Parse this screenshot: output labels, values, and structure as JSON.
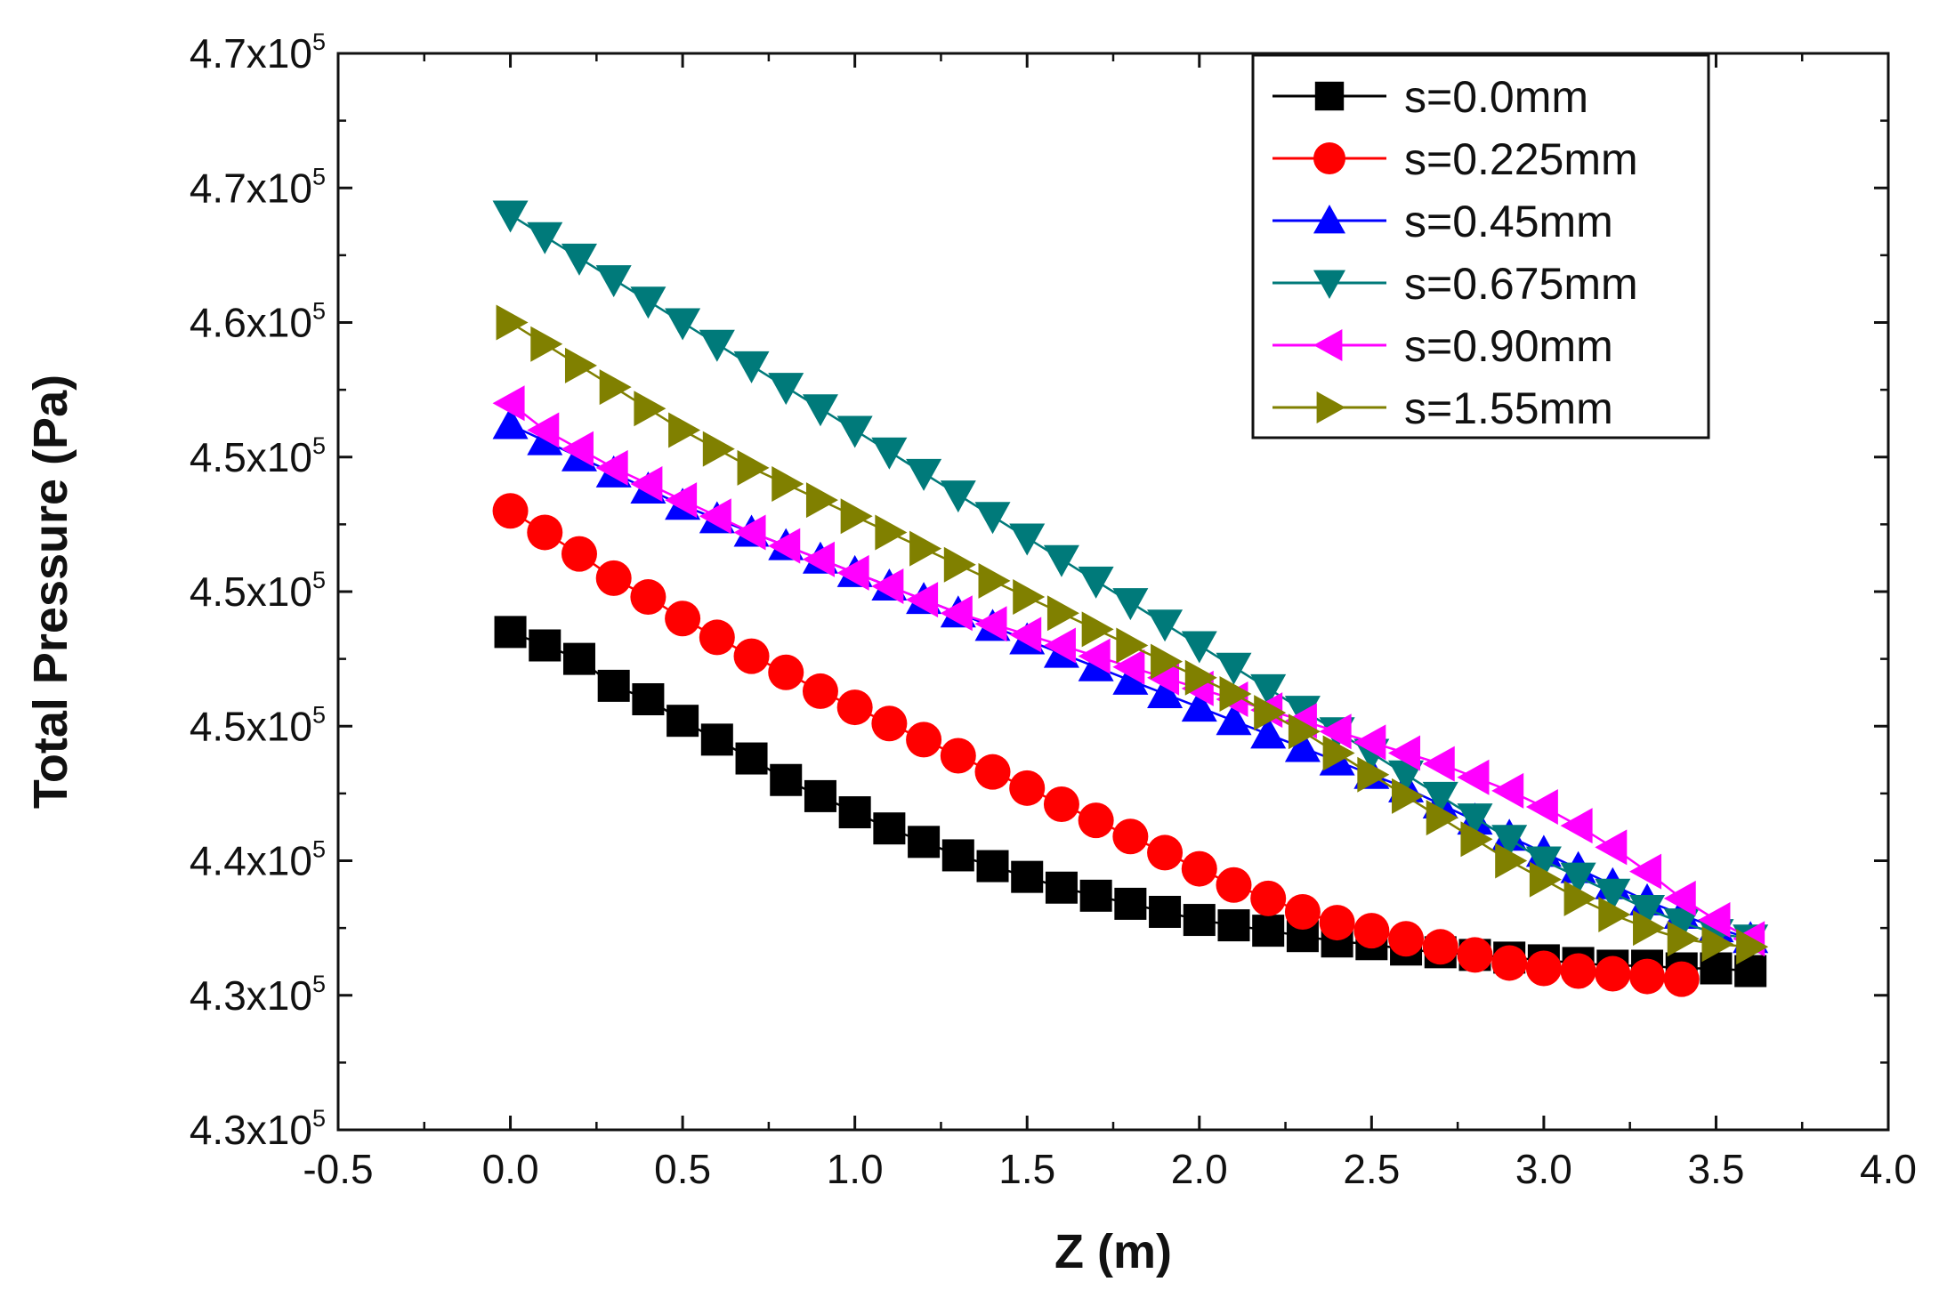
{
  "chart_data": {
    "type": "line",
    "title": "",
    "xlabel": "Z (m)",
    "ylabel": "Total Pressure (Pa)",
    "xlim": [
      -0.5,
      4.0
    ],
    "ylim": [
      4.3,
      4.7
    ],
    "x_ticks": [
      -0.5,
      0.0,
      0.5,
      1.0,
      1.5,
      2.0,
      2.5,
      3.0,
      3.5,
      4.0
    ],
    "x_tick_labels": [
      "-0.5",
      "0.0",
      "0.5",
      "1.0",
      "1.5",
      "2.0",
      "2.5",
      "3.0",
      "3.5",
      "4.0"
    ],
    "y_ticks": [
      4.3,
      4.35,
      4.4,
      4.45,
      4.5,
      4.55,
      4.6,
      4.65,
      4.7
    ],
    "y_tick_mantissas": [
      "4.3",
      "4.3",
      "4.4",
      "4.5",
      "4.5",
      "4.5",
      "4.6",
      "4.7",
      "4.7"
    ],
    "y_tick_base": "x10",
    "y_tick_exponent": "5",
    "legend_position": "top-right",
    "series": [
      {
        "name": "s=0.0mm",
        "marker": "square",
        "color": "#000000",
        "x": [
          0.0,
          0.1,
          0.2,
          0.3,
          0.4,
          0.5,
          0.6,
          0.7,
          0.8,
          0.9,
          1.0,
          1.1,
          1.2,
          1.3,
          1.4,
          1.5,
          1.6,
          1.7,
          1.8,
          1.9,
          2.0,
          2.1,
          2.2,
          2.3,
          2.4,
          2.5,
          2.6,
          2.7,
          2.8,
          2.9,
          3.0,
          3.1,
          3.2,
          3.3,
          3.4,
          3.5,
          3.6
        ],
        "y": [
          4.485,
          4.48,
          4.475,
          4.465,
          4.46,
          4.452,
          4.445,
          4.438,
          4.43,
          4.424,
          4.418,
          4.412,
          4.407,
          4.402,
          4.398,
          4.394,
          4.39,
          4.387,
          4.384,
          4.381,
          4.378,
          4.376,
          4.374,
          4.372,
          4.37,
          4.369,
          4.367,
          4.366,
          4.365,
          4.364,
          4.363,
          4.362,
          4.361,
          4.361,
          4.36,
          4.36,
          4.359
        ]
      },
      {
        "name": "s=0.225mm",
        "marker": "circle",
        "color": "#ff0000",
        "x": [
          0.0,
          0.1,
          0.2,
          0.3,
          0.4,
          0.5,
          0.6,
          0.7,
          0.8,
          0.9,
          1.0,
          1.1,
          1.2,
          1.3,
          1.4,
          1.5,
          1.6,
          1.7,
          1.8,
          1.9,
          2.0,
          2.1,
          2.2,
          2.3,
          2.4,
          2.5,
          2.6,
          2.7,
          2.8,
          2.9,
          3.0,
          3.1,
          3.2,
          3.3,
          3.4
        ],
        "y": [
          4.53,
          4.522,
          4.514,
          4.505,
          4.498,
          4.49,
          4.483,
          4.476,
          4.47,
          4.463,
          4.457,
          4.451,
          4.445,
          4.439,
          4.433,
          4.427,
          4.421,
          4.415,
          4.409,
          4.403,
          4.397,
          4.391,
          4.386,
          4.381,
          4.377,
          4.374,
          4.371,
          4.368,
          4.365,
          4.362,
          4.36,
          4.359,
          4.358,
          4.357,
          4.356
        ]
      },
      {
        "name": "s=0.45mm",
        "marker": "triangle-up",
        "color": "#0000ff",
        "x": [
          0.0,
          0.1,
          0.2,
          0.3,
          0.4,
          0.5,
          0.6,
          0.7,
          0.8,
          0.9,
          1.0,
          1.1,
          1.2,
          1.3,
          1.4,
          1.5,
          1.6,
          1.7,
          1.8,
          1.9,
          2.0,
          2.1,
          2.2,
          2.3,
          2.4,
          2.5,
          2.6,
          2.7,
          2.8,
          2.9,
          3.0,
          3.1,
          3.2,
          3.3,
          3.4,
          3.5,
          3.6
        ],
        "y": [
          4.562,
          4.556,
          4.55,
          4.544,
          4.538,
          4.532,
          4.527,
          4.522,
          4.517,
          4.512,
          4.507,
          4.502,
          4.497,
          4.492,
          4.487,
          4.482,
          4.477,
          4.472,
          4.467,
          4.462,
          4.457,
          4.452,
          4.447,
          4.442,
          4.437,
          4.432,
          4.427,
          4.421,
          4.415,
          4.409,
          4.403,
          4.397,
          4.391,
          4.385,
          4.38,
          4.375,
          4.371
        ]
      },
      {
        "name": "s=0.675mm",
        "marker": "triangle-down",
        "color": "#007a7a",
        "x": [
          0.0,
          0.1,
          0.2,
          0.3,
          0.4,
          0.5,
          0.6,
          0.7,
          0.8,
          0.9,
          1.0,
          1.1,
          1.2,
          1.3,
          1.4,
          1.5,
          1.6,
          1.7,
          1.8,
          1.9,
          2.0,
          2.1,
          2.2,
          2.3,
          2.4,
          2.5,
          2.6,
          2.7,
          2.8,
          2.9,
          3.0,
          3.1,
          3.2,
          3.3,
          3.4,
          3.5,
          3.6
        ],
        "y": [
          4.64,
          4.632,
          4.624,
          4.616,
          4.608,
          4.6,
          4.592,
          4.584,
          4.576,
          4.568,
          4.56,
          4.552,
          4.544,
          4.536,
          4.528,
          4.52,
          4.512,
          4.504,
          4.496,
          4.488,
          4.48,
          4.472,
          4.464,
          4.456,
          4.448,
          4.44,
          4.432,
          4.424,
          4.416,
          4.408,
          4.4,
          4.394,
          4.388,
          4.382,
          4.377,
          4.373,
          4.371
        ]
      },
      {
        "name": "s=0.90mm",
        "marker": "triangle-left",
        "color": "#ff00ff",
        "x": [
          0.0,
          0.1,
          0.2,
          0.3,
          0.4,
          0.5,
          0.6,
          0.7,
          0.8,
          0.9,
          1.0,
          1.1,
          1.2,
          1.3,
          1.4,
          1.5,
          1.6,
          1.7,
          1.8,
          1.9,
          2.0,
          2.1,
          2.2,
          2.3,
          2.4,
          2.5,
          2.6,
          2.7,
          2.8,
          2.9,
          3.0,
          3.1,
          3.2,
          3.3,
          3.4,
          3.5,
          3.6
        ],
        "y": [
          4.57,
          4.56,
          4.553,
          4.546,
          4.54,
          4.534,
          4.528,
          4.522,
          4.517,
          4.512,
          4.507,
          4.502,
          4.497,
          4.492,
          4.488,
          4.484,
          4.48,
          4.476,
          4.472,
          4.468,
          4.464,
          4.46,
          4.456,
          4.452,
          4.448,
          4.444,
          4.44,
          4.436,
          4.431,
          4.426,
          4.42,
          4.413,
          4.405,
          4.396,
          4.386,
          4.378,
          4.371
        ]
      },
      {
        "name": "s=1.55mm",
        "marker": "triangle-right",
        "color": "#808000",
        "x": [
          0.0,
          0.1,
          0.2,
          0.3,
          0.4,
          0.5,
          0.6,
          0.7,
          0.8,
          0.9,
          1.0,
          1.1,
          1.2,
          1.3,
          1.4,
          1.5,
          1.6,
          1.7,
          1.8,
          1.9,
          2.0,
          2.1,
          2.2,
          2.3,
          2.4,
          2.5,
          2.6,
          2.7,
          2.8,
          2.9,
          3.0,
          3.1,
          3.2,
          3.3,
          3.4,
          3.5,
          3.6
        ],
        "y": [
          4.6,
          4.592,
          4.584,
          4.576,
          4.568,
          4.56,
          4.553,
          4.546,
          4.54,
          4.534,
          4.528,
          4.522,
          4.516,
          4.51,
          4.504,
          4.498,
          4.492,
          4.486,
          4.48,
          4.474,
          4.468,
          4.462,
          4.455,
          4.448,
          4.44,
          4.432,
          4.424,
          4.416,
          4.408,
          4.4,
          4.393,
          4.386,
          4.38,
          4.375,
          4.371,
          4.369,
          4.368
        ]
      }
    ]
  }
}
